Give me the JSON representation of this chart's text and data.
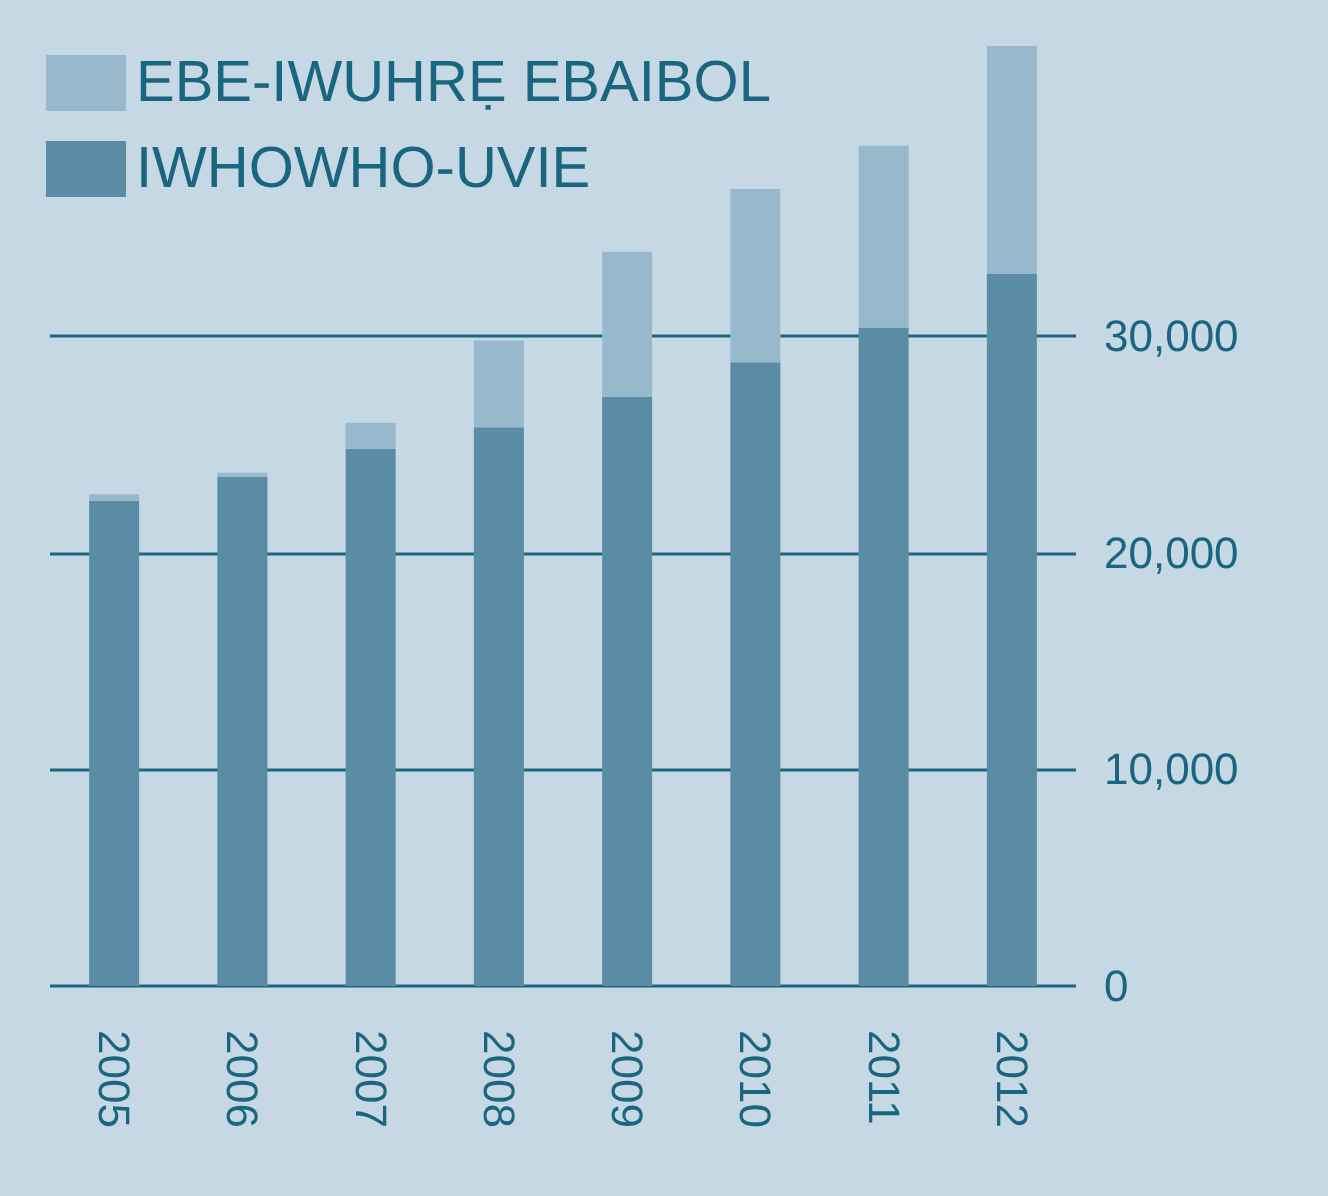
{
  "chart_data": {
    "type": "bar",
    "stacked": true,
    "categories": [
      "2005",
      "2006",
      "2007",
      "2008",
      "2009",
      "2010",
      "2011",
      "2012"
    ],
    "series": [
      {
        "name": "IWHOWHO-UVIE",
        "color": "#5a8ca6",
        "values": [
          22400,
          23500,
          24800,
          25800,
          27200,
          28800,
          30400,
          32900
        ]
      },
      {
        "name": "EBE-IWUHRẸ EBAIBOL",
        "color": "#97b9cb",
        "values": [
          300,
          200,
          1200,
          4000,
          6700,
          8000,
          8400,
          10500
        ]
      }
    ],
    "ylim": [
      0,
      43400
    ],
    "yticks": [
      {
        "value": 0,
        "label": "0"
      },
      {
        "value": 10000,
        "label": "10,000"
      },
      {
        "value": 20000,
        "label": "20,000"
      },
      {
        "value": 30000,
        "label": "30,000"
      }
    ],
    "grid": "y",
    "legend": "top left"
  }
}
